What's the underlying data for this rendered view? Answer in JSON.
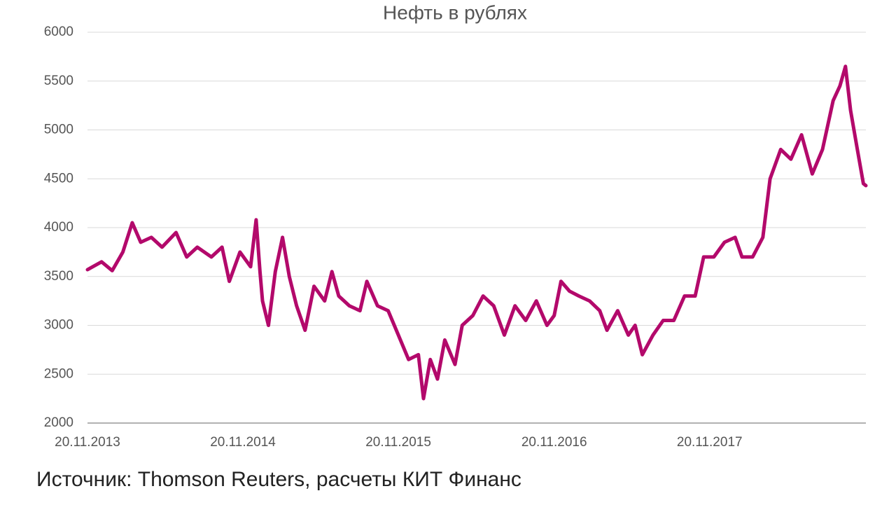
{
  "chart_data": {
    "type": "line",
    "title": "Нефть в рублях",
    "source": "Источник: Thomson Reuters, расчеты КИТ Финанс",
    "color": "#b3096b",
    "grid": true,
    "xlim": [
      "2013-11-20",
      "2018-11-22"
    ],
    "xticks": [
      {
        "value": "2013-11-20",
        "label": "20.11.2013"
      },
      {
        "value": "2014-11-20",
        "label": "20.11.2014"
      },
      {
        "value": "2015-11-20",
        "label": "20.11.2015"
      },
      {
        "value": "2016-11-20",
        "label": "20.11.2016"
      },
      {
        "value": "2017-11-20",
        "label": "20.11.2017"
      }
    ],
    "ylim": [
      2000,
      6000
    ],
    "yticks": [
      2000,
      2500,
      3000,
      3500,
      4000,
      4500,
      5000,
      5500,
      6000
    ],
    "x": [
      "2013-11-20",
      "2013-12-23",
      "2014-01-17",
      "2014-02-11",
      "2014-03-05",
      "2014-03-25",
      "2014-04-19",
      "2014-05-14",
      "2014-06-16",
      "2014-07-11",
      "2014-08-05",
      "2014-09-07",
      "2014-10-02",
      "2014-10-19",
      "2014-11-13",
      "2014-12-08",
      "2014-12-21",
      "2014-12-30",
      "2015-01-05",
      "2015-01-19",
      "2015-02-04",
      "2015-02-21",
      "2015-03-09",
      "2015-03-26",
      "2015-04-15",
      "2015-05-06",
      "2015-05-31",
      "2015-06-17",
      "2015-07-03",
      "2015-07-28",
      "2015-08-22",
      "2015-09-07",
      "2015-10-02",
      "2015-10-27",
      "2015-11-20",
      "2015-12-14",
      "2016-01-06",
      "2016-01-18",
      "2016-02-03",
      "2016-02-20",
      "2016-03-08",
      "2016-04-01",
      "2016-04-18",
      "2016-05-13",
      "2016-06-06",
      "2016-07-01",
      "2016-07-26",
      "2016-08-20",
      "2016-09-14",
      "2016-10-09",
      "2016-11-03",
      "2016-11-20",
      "2016-12-06",
      "2016-12-26",
      "2017-01-17",
      "2017-02-11",
      "2017-03-07",
      "2017-03-24",
      "2017-04-18",
      "2017-05-13",
      "2017-05-29",
      "2017-06-15",
      "2017-07-10",
      "2017-08-03",
      "2017-08-28",
      "2017-09-22",
      "2017-10-17",
      "2017-11-06",
      "2017-11-30",
      "2017-12-25",
      "2018-01-19",
      "2018-02-04",
      "2018-03-01",
      "2018-03-25",
      "2018-04-11",
      "2018-05-06",
      "2018-05-30",
      "2018-06-24",
      "2018-07-19",
      "2018-08-12",
      "2018-09-06",
      "2018-09-22",
      "2018-10-05",
      "2018-10-17",
      "2018-11-02",
      "2018-11-16",
      "2018-11-22"
    ],
    "values": [
      3570,
      3650,
      3560,
      3750,
      4050,
      3850,
      3900,
      3800,
      3950,
      3700,
      3800,
      3700,
      3800,
      3450,
      3750,
      3600,
      4080,
      3550,
      3250,
      3000,
      3550,
      3900,
      3500,
      3200,
      2950,
      3400,
      3250,
      3550,
      3300,
      3200,
      3150,
      3450,
      3200,
      3150,
      2900,
      2650,
      2700,
      2250,
      2650,
      2450,
      2850,
      2600,
      3000,
      3100,
      3300,
      3200,
      2900,
      3200,
      3050,
      3250,
      3000,
      3100,
      3450,
      3350,
      3300,
      3250,
      3150,
      2950,
      3150,
      2900,
      3000,
      2700,
      2900,
      3050,
      3050,
      3300,
      3300,
      3700,
      3700,
      3850,
      3900,
      3700,
      3700,
      3900,
      4500,
      4800,
      4700,
      4950,
      4550,
      4800,
      5300,
      5450,
      5650,
      5200,
      4800,
      4450,
      4430
    ]
  }
}
